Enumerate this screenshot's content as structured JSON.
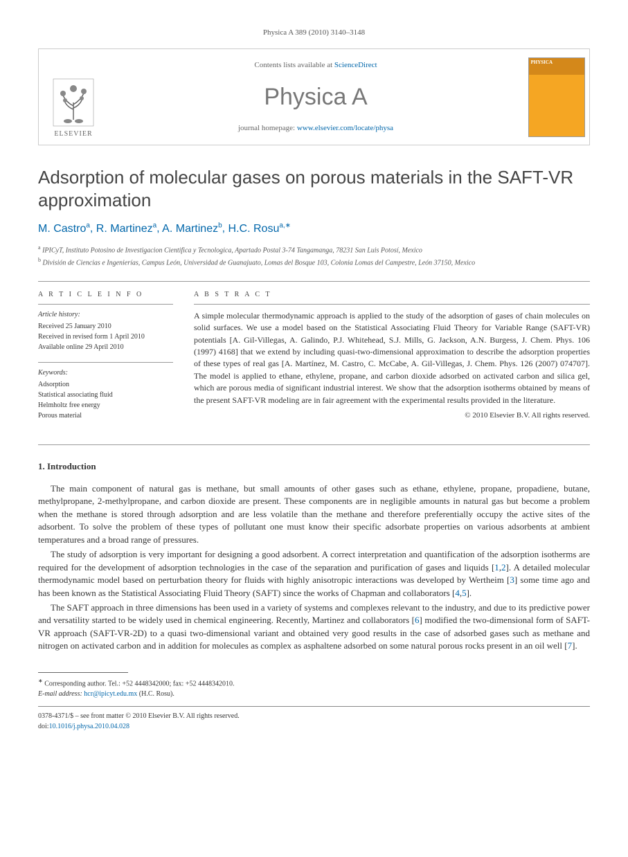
{
  "running_header": "Physica A 389 (2010) 3140–3148",
  "header": {
    "contents_prefix": "Contents lists available at ",
    "contents_link": "ScienceDirect",
    "journal_name": "Physica A",
    "homepage_prefix": "journal homepage: ",
    "homepage_link": "www.elsevier.com/locate/physa",
    "publisher_label": "ELSEVIER",
    "cover_label": "PHYSICA"
  },
  "title": "Adsorption of molecular gases on porous materials in the SAFT-VR approximation",
  "authors": [
    {
      "name": "M. Castro",
      "aff": "a",
      "corr": false
    },
    {
      "name": "R. Martinez",
      "aff": "a",
      "corr": false
    },
    {
      "name": "A. Martinez",
      "aff": "b",
      "corr": false
    },
    {
      "name": "H.C. Rosu",
      "aff": "a",
      "corr": true
    }
  ],
  "affiliations": {
    "a": "IPICyT, Instituto Potosino de Investigacion Cientifica y Tecnologica, Apartado Postal 3-74 Tangamanga, 78231 San Luis Potosí, Mexico",
    "b": "División de Ciencias e Ingenierías, Campus León, Universidad de Guanajuato, Lomas del Bosque 103, Colonia Lomas del Campestre, León 37150, Mexico"
  },
  "info": {
    "section_label": "A R T I C L E   I N F O",
    "history_label": "Article history:",
    "received": "Received 25 January 2010",
    "revised": "Received in revised form 1 April 2010",
    "online": "Available online 29 April 2010",
    "keywords_label": "Keywords:",
    "keywords": [
      "Adsorption",
      "Statistical associating fluid",
      "Helmholtz free energy",
      "Porous material"
    ]
  },
  "abstract": {
    "section_label": "A B S T R A C T",
    "text": "A simple molecular thermodynamic approach is applied to the study of the adsorption of gases of chain molecules on solid surfaces. We use a model based on the Statistical Associating Fluid Theory for Variable Range (SAFT-VR) potentials [A. Gil-Villegas, A. Galindo, P.J. Whitehead, S.J. Mills, G. Jackson, A.N. Burgess, J. Chem. Phys. 106 (1997) 4168] that we extend by including quasi-two-dimensional approximation to describe the adsorption properties of these types of real gas [A. Martínez, M. Castro, C. McCabe, A. Gil-Villegas, J. Chem. Phys. 126 (2007) 074707]. The model is applied to ethane, ethylene, propane, and carbon dioxide adsorbed on activated carbon and silica gel, which are porous media of significant industrial interest. We show that the adsorption isotherms obtained by means of the present SAFT-VR modeling are in fair agreement with the experimental results provided in the literature.",
    "copyright": "© 2010 Elsevier B.V. All rights reserved."
  },
  "body": {
    "section_number": "1.",
    "section_title": "Introduction",
    "paragraphs": [
      "The main component of natural gas is methane, but small amounts of other gases such as ethane, ethylene, propane, propadiene, butane, methylpropane, 2-methylpropane, and carbon dioxide are present. These components are in negligible amounts in natural gas but become a problem when the methane is stored through adsorption and are less volatile than the methane and therefore preferentially occupy the active sites of the adsorbent. To solve the problem of these types of pollutant one must know their specific adsorbate properties on various adsorbents at ambient temperatures and a broad range of pressures.",
      "The study of adsorption is very important for designing a good adsorbent. A correct interpretation and quantification of the adsorption isotherms are required for the development of adsorption technologies in the case of the separation and purification of gases and liquids [1,2]. A detailed molecular thermodynamic model based on perturbation theory for fluids with highly anisotropic interactions was developed by Wertheim [3] some time ago and has been known as the Statistical Associating Fluid Theory (SAFT) since the works of Chapman and collaborators [4,5].",
      "The SAFT approach in three dimensions has been used in a variety of systems and complexes relevant to the industry, and due to its predictive power and versatility started to be widely used in chemical engineering. Recently, Martinez and collaborators [6] modified the two-dimensional form of SAFT-VR approach (SAFT-VR-2D) to a quasi two-dimensional variant and obtained very good results in the case of adsorbed gases such as methane and nitrogen on activated carbon and in addition for molecules as complex as asphaltene adsorbed on some natural porous rocks present in an oil well [7]."
    ],
    "reference_links": [
      "1",
      "2",
      "3",
      "4",
      "5",
      "6",
      "7"
    ]
  },
  "footnote": {
    "corr_label": "Corresponding author. Tel.: +52 4448342000; fax: +52 4448342010.",
    "email_label": "E-mail address:",
    "email": "hcr@ipicyt.edu.mx",
    "email_suffix": "(H.C. Rosu)."
  },
  "footer": {
    "line1": "0378-4371/$ – see front matter © 2010 Elsevier B.V. All rights reserved.",
    "doi_prefix": "doi:",
    "doi": "10.1016/j.physa.2010.04.028"
  },
  "colors": {
    "link": "#0066aa",
    "text": "#333333",
    "heading": "#444444",
    "cover_bg": "#f5a623",
    "cover_top": "#d4881a"
  }
}
